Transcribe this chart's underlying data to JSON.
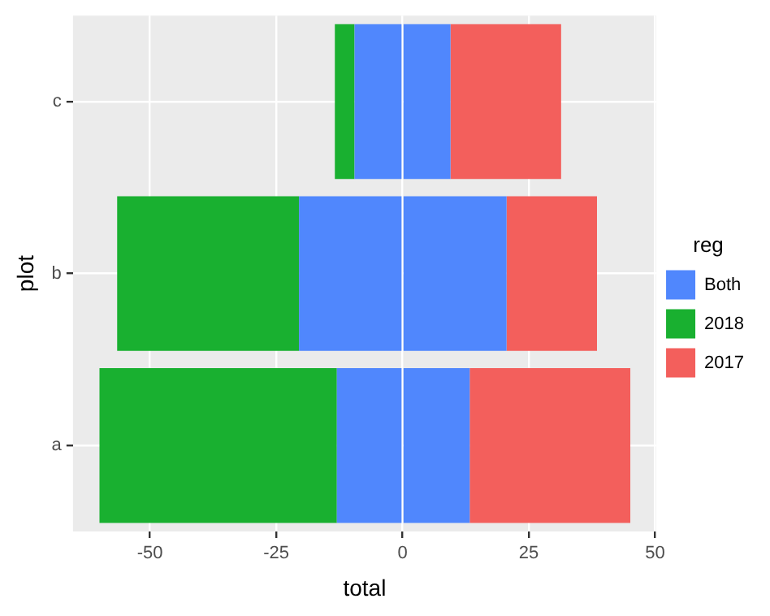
{
  "chart_data": {
    "type": "bar",
    "orientation": "horizontal",
    "stacked": true,
    "xlabel": "total",
    "ylabel": "plot",
    "legend_title": "reg",
    "legend": "right",
    "grid": true,
    "categories": [
      "c",
      "b",
      "a"
    ],
    "series": [
      {
        "name": "Both",
        "color": "#5087fd",
        "values": [
          -9.5,
          -20.5,
          -13
        ]
      },
      {
        "color": "#5087fd",
        "values": [
          9.5,
          20.6,
          13.3
        ]
      },
      {
        "name": "2018",
        "color": "#19b030",
        "values": [
          -3.9,
          -36,
          -47
        ]
      },
      {
        "name": "2017",
        "color": "#f35f5c",
        "values": [
          21.9,
          17.9,
          31.8
        ]
      }
    ],
    "xlim": [
      -65.25,
      50.25
    ],
    "xticks": [
      -50,
      -25,
      0,
      25,
      50
    ]
  }
}
